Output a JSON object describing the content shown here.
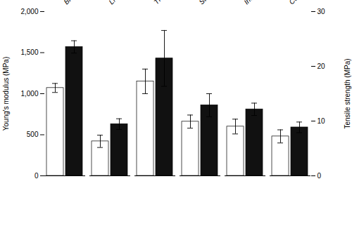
{
  "chart_data": {
    "type": "bar",
    "categories": [
      "Blank PVA",
      "LNG only",
      "TFV only",
      "Stacked",
      "Interwoven",
      "Combined"
    ],
    "series": [
      {
        "color": "#ffffff",
        "values": [
          1070,
          420,
          1150,
          660,
          600,
          480
        ],
        "errors": [
          55,
          75,
          150,
          80,
          90,
          80
        ]
      },
      {
        "color": "#111111",
        "values": [
          1570,
          630,
          1430,
          860,
          810,
          590
        ],
        "errors": [
          75,
          65,
          340,
          140,
          75,
          65
        ]
      }
    ],
    "ylabel": "Young's modulus (MPa)",
    "y2label": "Tensile strength (MPa)",
    "ylim": [
      0,
      2000
    ],
    "yticks": [
      0,
      500,
      {
        "value": 1000,
        "label": "1,000"
      },
      {
        "value": 1500,
        "label": "1,500"
      },
      {
        "value": 2000,
        "label": "2,000"
      }
    ],
    "y2lim": [
      0,
      30
    ],
    "y2ticks": [
      0,
      10,
      20,
      30
    ],
    "grid": false
  }
}
